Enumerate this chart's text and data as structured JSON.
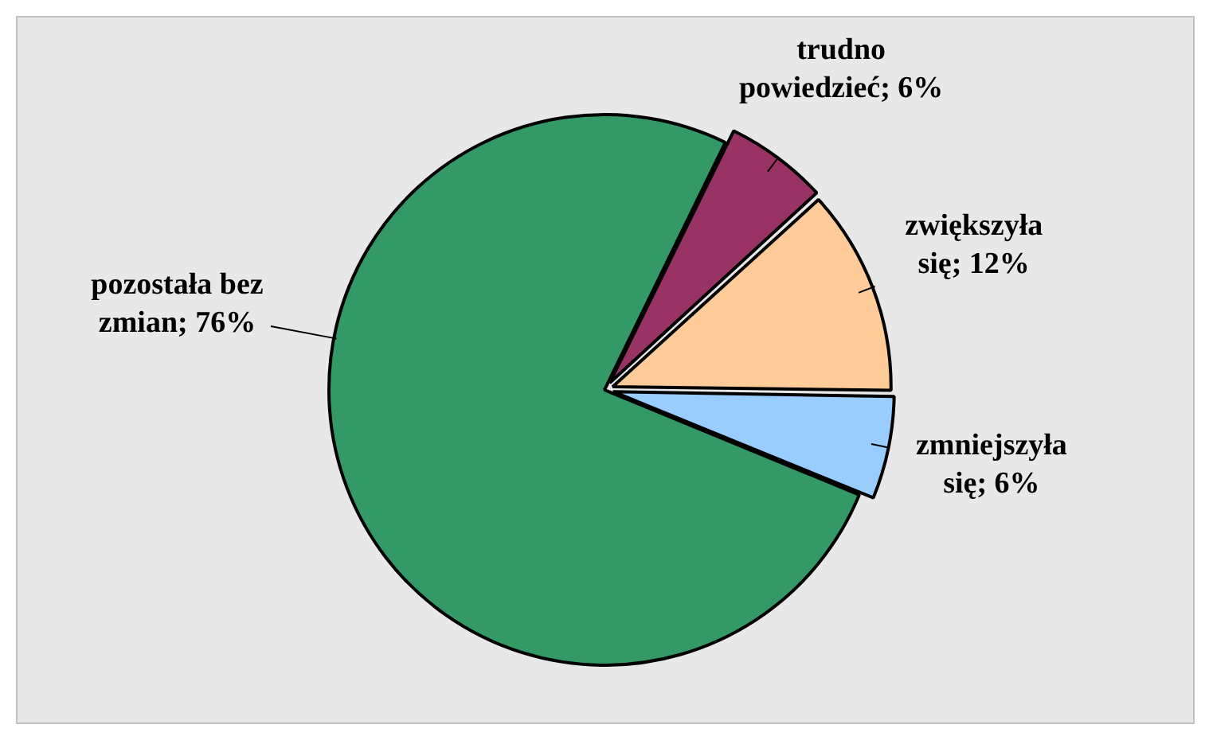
{
  "chart_data": {
    "type": "pie",
    "categories": [
      "trudno powiedzieć",
      "zwiększyła się",
      "zmniejszyła się",
      "pozostała bez zmian"
    ],
    "values": [
      6,
      12,
      6,
      76
    ],
    "value_labels": [
      "; 6%",
      "; 12%",
      "; 6%",
      "; 76%"
    ],
    "colors": [
      "#993366",
      "#ffcc99",
      "#99ccff",
      "#339966"
    ],
    "legend": false
  }
}
